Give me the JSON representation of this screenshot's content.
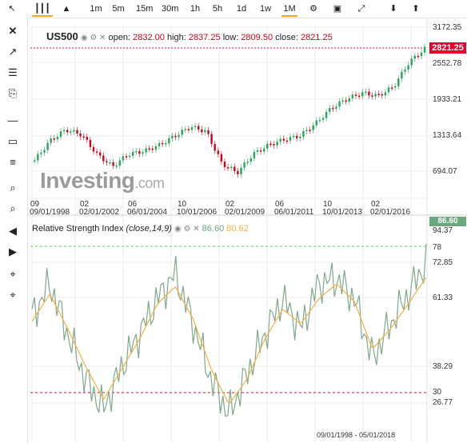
{
  "toolbar": {
    "intervals": [
      "1m",
      "5m",
      "15m",
      "30m",
      "1h",
      "5h",
      "1d",
      "1w",
      "1M"
    ],
    "selected_interval": "1M"
  },
  "chart": {
    "symbol": "US500",
    "open_label": "open:",
    "open": "2832.00",
    "high_label": "high:",
    "high": "2837.25",
    "low_label": "low:",
    "low": "2809.50",
    "close_label": "close:",
    "close": "2821.25",
    "current_price": "2821.25",
    "watermark": "Investing",
    "watermark_suffix": ".com"
  },
  "price_axis": [
    "3172.35",
    "2552.78",
    "1933.21",
    "1313.64",
    "694.07"
  ],
  "time_axis": [
    {
      "month": "09",
      "date": "09/01/1998"
    },
    {
      "month": "02",
      "date": "02/01/2002"
    },
    {
      "month": "06",
      "date": "06/01/2004"
    },
    {
      "month": "10",
      "date": "10/01/2006"
    },
    {
      "month": "02",
      "date": "02/01/2009"
    },
    {
      "month": "06",
      "date": "06/01/2011"
    },
    {
      "month": "10",
      "date": "10/01/2013"
    },
    {
      "month": "02",
      "date": "02/01/2016"
    }
  ],
  "rsi": {
    "title": "Relative Strength Index",
    "params": "(close,14,9)",
    "value": "86.60",
    "signal": "80.62",
    "current": "86.60",
    "axis": [
      "94.37",
      "78",
      "72.85",
      "61.33",
      "38.29",
      "30",
      "26.77"
    ],
    "overbought": 78,
    "oversold": 30,
    "range_label": "09/01/1998 - 05/01/2018"
  },
  "colors": {
    "up": "#26a65b",
    "down": "#d0021b",
    "rsi": "#7fa98b",
    "signal": "#f5b041",
    "accent": "#f5a623"
  },
  "chart_data": {
    "type": "line",
    "series": [
      {
        "name": "US500",
        "values": [
          1000,
          1320,
          1500,
          1420,
          1100,
          900,
          1100,
          1150,
          1250,
          1400,
          1550,
          1470,
          950,
          800,
          1100,
          1250,
          1340,
          1400,
          1600,
          1850,
          2000,
          2100,
          2050,
          2200,
          2600,
          2821
        ]
      },
      {
        "name": "RSI",
        "values": [
          65,
          78,
          58,
          40,
          28,
          45,
          58,
          72,
          82,
          62,
          40,
          26,
          42,
          58,
          72,
          60,
          78,
          80,
          72,
          48,
          62,
          74,
          86.6
        ]
      },
      {
        "name": "Signal",
        "values": [
          63,
          74,
          60,
          45,
          32,
          44,
          56,
          70,
          77,
          64,
          44,
          30,
          40,
          56,
          68,
          62,
          72,
          78,
          71,
          52,
          60,
          70,
          80.62
        ]
      }
    ]
  }
}
